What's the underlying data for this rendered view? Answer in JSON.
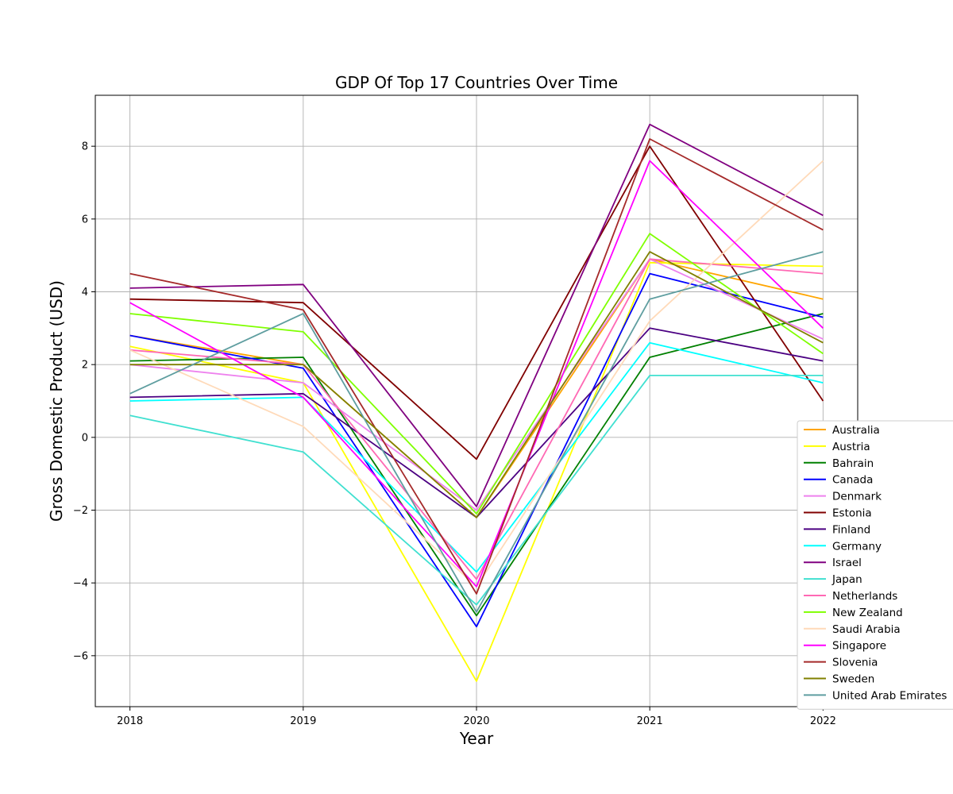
{
  "chart_data": {
    "type": "line",
    "title": "GDP Of Top 17 Countries Over Time",
    "xlabel": "Year",
    "ylabel": "Gross Domestic Product (USD)",
    "x": [
      "2018",
      "2019",
      "2020",
      "2021",
      "2022"
    ],
    "xlim": [
      2017.8,
      2022.2
    ],
    "ylim": [
      -7.4,
      9.4
    ],
    "yticks": [
      "−6",
      "−4",
      "−2",
      "0",
      "2",
      "4",
      "6",
      "8"
    ],
    "grid": true,
    "legend_position": "right-bottom",
    "series": [
      {
        "name": "Australia",
        "color": "#FFA500",
        "values": [
          2.8,
          2.0,
          -2.2,
          4.9,
          3.8
        ]
      },
      {
        "name": "Austria",
        "color": "#FFFF00",
        "values": [
          2.5,
          1.5,
          -6.7,
          4.8,
          4.7
        ]
      },
      {
        "name": "Bahrain",
        "color": "#008000",
        "values": [
          2.1,
          2.2,
          -4.9,
          2.2,
          3.4
        ]
      },
      {
        "name": "Canada",
        "color": "#0000FF",
        "values": [
          2.8,
          1.9,
          -5.2,
          4.5,
          3.3
        ]
      },
      {
        "name": "Denmark",
        "color": "#EE82EE",
        "values": [
          2.0,
          1.5,
          -2.0,
          4.9,
          2.7
        ]
      },
      {
        "name": "Estonia",
        "color": "#800000",
        "values": [
          3.8,
          3.7,
          -0.6,
          8.0,
          1.0
        ]
      },
      {
        "name": "Finland",
        "color": "#4B0082",
        "values": [
          1.1,
          1.2,
          -2.2,
          3.0,
          2.1
        ]
      },
      {
        "name": "Germany",
        "color": "#00FFFF",
        "values": [
          1.0,
          1.1,
          -3.7,
          2.6,
          1.5
        ]
      },
      {
        "name": "Israel",
        "color": "#800080",
        "values": [
          4.1,
          4.2,
          -1.9,
          8.6,
          6.1
        ]
      },
      {
        "name": "Japan",
        "color": "#40E0D0",
        "values": [
          0.6,
          -0.4,
          -4.6,
          1.7,
          1.7
        ]
      },
      {
        "name": "Netherlands",
        "color": "#FF69B4",
        "values": [
          2.4,
          2.0,
          -3.9,
          4.9,
          4.5
        ]
      },
      {
        "name": "New Zealand",
        "color": "#7FFF00",
        "values": [
          3.4,
          2.9,
          -2.1,
          5.6,
          2.3
        ]
      },
      {
        "name": "Saudi Arabia",
        "color": "#FFDAB9",
        "values": [
          2.4,
          0.3,
          -4.1,
          3.2,
          7.6
        ]
      },
      {
        "name": "Singapore",
        "color": "#FF00FF",
        "values": [
          3.7,
          1.1,
          -4.1,
          7.6,
          3.0
        ]
      },
      {
        "name": "Slovenia",
        "color": "#A52A2A",
        "values": [
          4.5,
          3.5,
          -4.3,
          8.2,
          5.7
        ]
      },
      {
        "name": "Sweden",
        "color": "#808000",
        "values": [
          2.0,
          2.0,
          -2.2,
          5.1,
          2.6
        ]
      },
      {
        "name": "United Arab Emirates",
        "color": "#5F9EA0",
        "values": [
          1.2,
          3.4,
          -4.8,
          3.8,
          5.1
        ]
      }
    ]
  }
}
